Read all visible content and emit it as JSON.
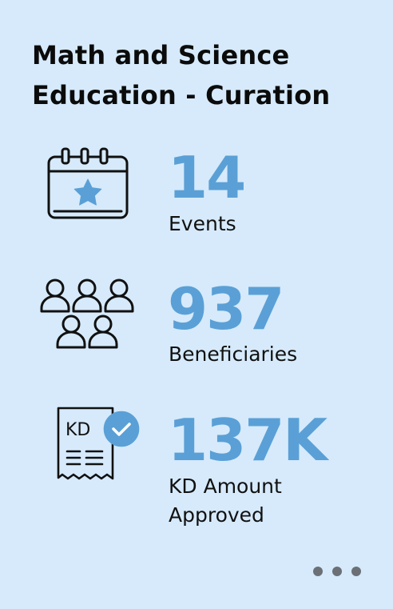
{
  "card": {
    "title_line1": "Math and Science",
    "title_line2": "Education - Curation"
  },
  "stats": [
    {
      "icon": "calendar-star-icon",
      "value": "14",
      "label_line1": "Events",
      "label_line2": ""
    },
    {
      "icon": "people-group-icon",
      "value": "937",
      "label_line1": "Beneficiaries",
      "label_line2": ""
    },
    {
      "icon": "receipt-check-icon",
      "value": "137K",
      "label_line1": "KD Amount",
      "label_line2": "Approved",
      "icon_text": "KD"
    }
  ],
  "pager": {
    "dots": 3,
    "icon": "more-dots-icon"
  },
  "colors": {
    "background": "#d6eafb",
    "accent": "#5aa0d6",
    "text": "#111111",
    "dots": "#6b7076"
  }
}
